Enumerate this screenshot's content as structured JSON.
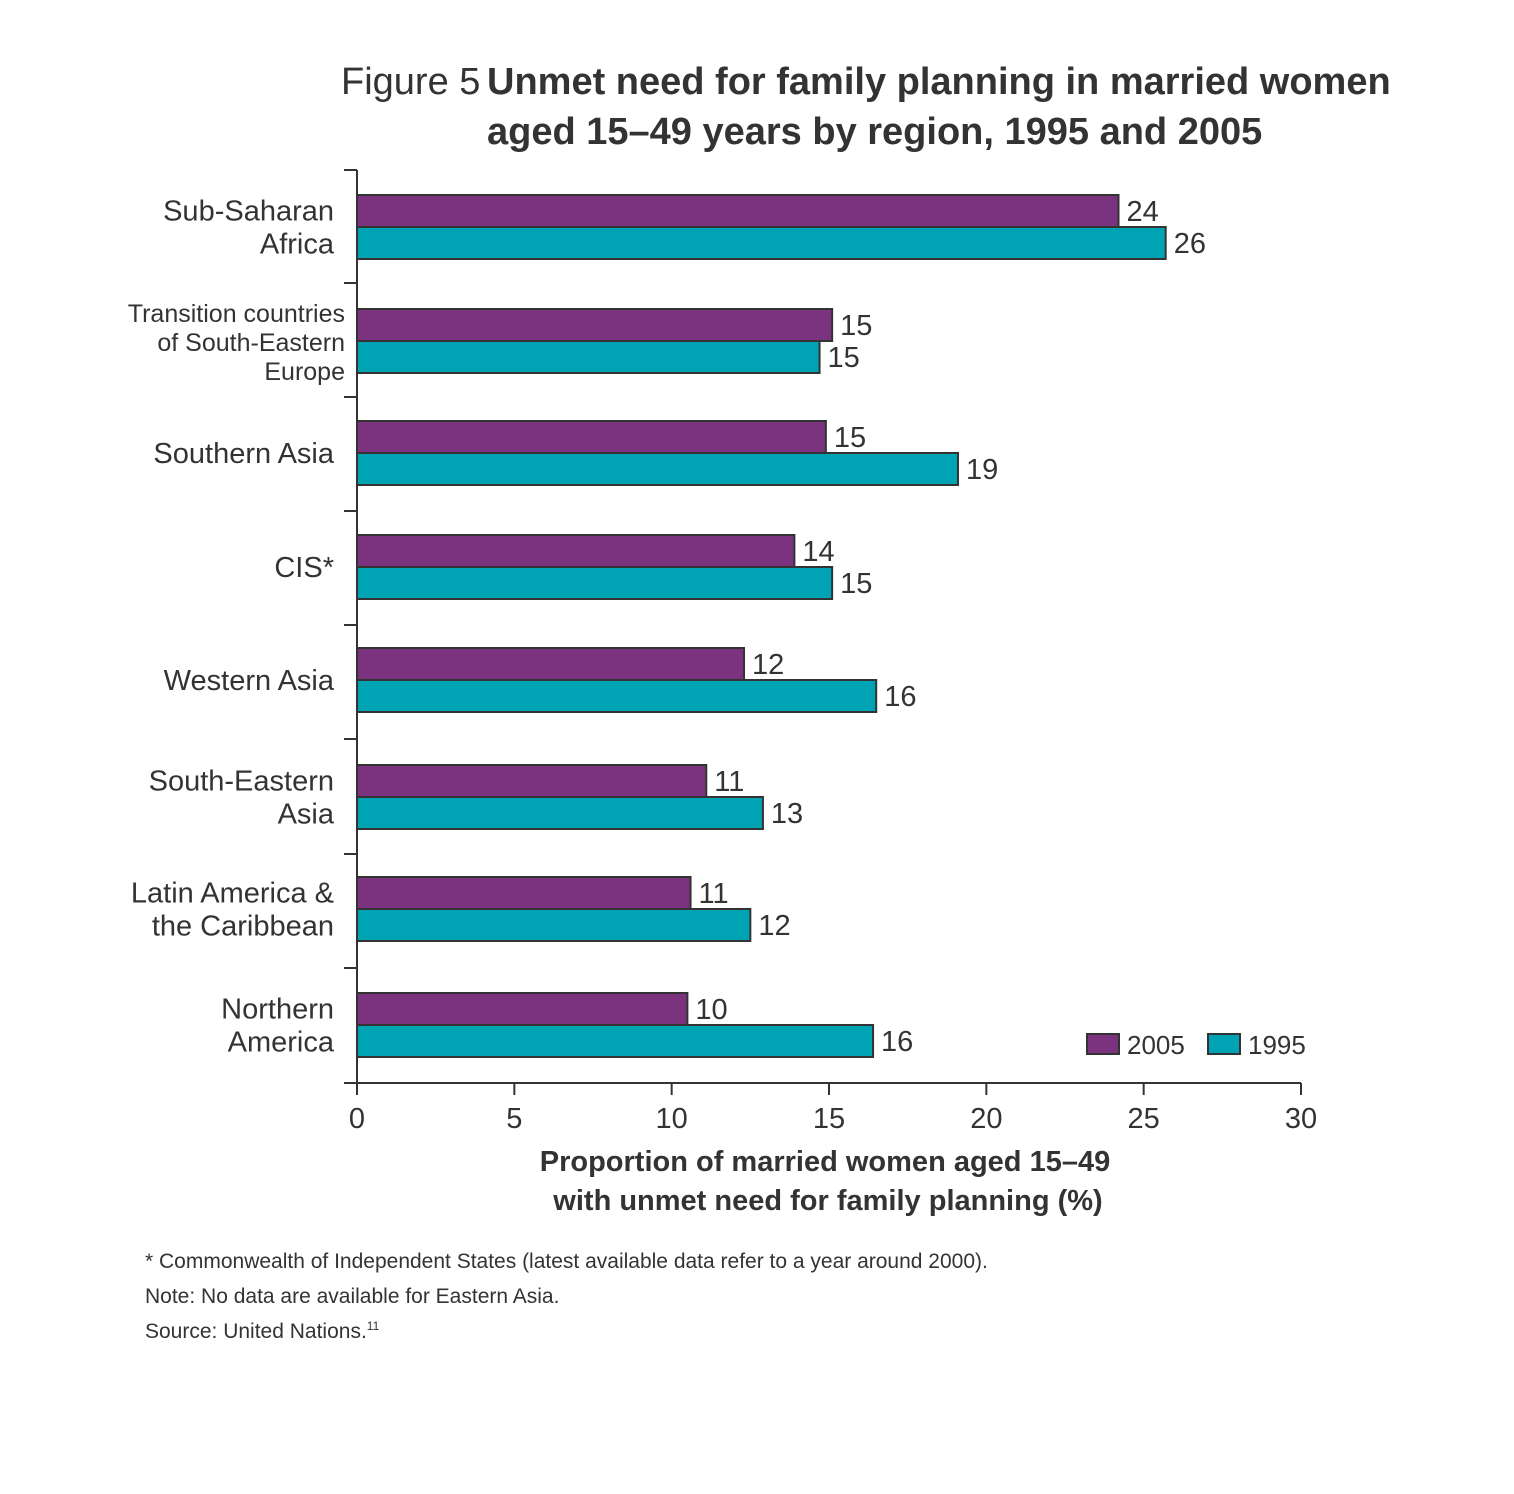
{
  "figure": {
    "label": "Figure 5",
    "title_line1": "Unmet need for family planning in married women",
    "title_line2": "aged 15–49 years by region, 1995 and 2005"
  },
  "chart_data": {
    "type": "bar",
    "orientation": "horizontal",
    "categories": [
      [
        "Sub-Saharan",
        "Africa"
      ],
      [
        "Transition countries",
        "of South-Eastern",
        "Europe"
      ],
      [
        "Southern Asia"
      ],
      [
        "CIS*"
      ],
      [
        "Western Asia"
      ],
      [
        "South-Eastern",
        "Asia"
      ],
      [
        "Latin America &",
        "the Caribbean"
      ],
      [
        "Northern",
        "America"
      ]
    ],
    "series": [
      {
        "name": "2005",
        "color": "#7b3380",
        "values": [
          24.2,
          15.1,
          14.9,
          13.9,
          12.3,
          11.1,
          10.6,
          10.5
        ],
        "labels": [
          "24",
          "15",
          "15",
          "14",
          "12",
          "11",
          "11",
          "10"
        ]
      },
      {
        "name": "1995",
        "color": "#00a3b4",
        "values": [
          25.7,
          14.7,
          19.1,
          15.1,
          16.5,
          12.9,
          12.5,
          16.4
        ],
        "labels": [
          "26",
          "15",
          "19",
          "15",
          "16",
          "13",
          "12",
          "16"
        ]
      }
    ],
    "xlim": [
      0,
      30
    ],
    "xticks": [
      "0",
      "5",
      "10",
      "15",
      "20",
      "25",
      "30"
    ],
    "xlabel_line1": "Proportion of married women aged 15–49",
    "xlabel_line2": "with unmet need for family planning (%)",
    "legend_position": "bottom-right",
    "grid": false
  },
  "notes": {
    "footnote": "* Commonwealth of Independent States (latest available data refer to a year around 2000).",
    "note": "Note: No data are available for Eastern Asia.",
    "source": "Source: United Nations.",
    "source_ref": "11"
  }
}
